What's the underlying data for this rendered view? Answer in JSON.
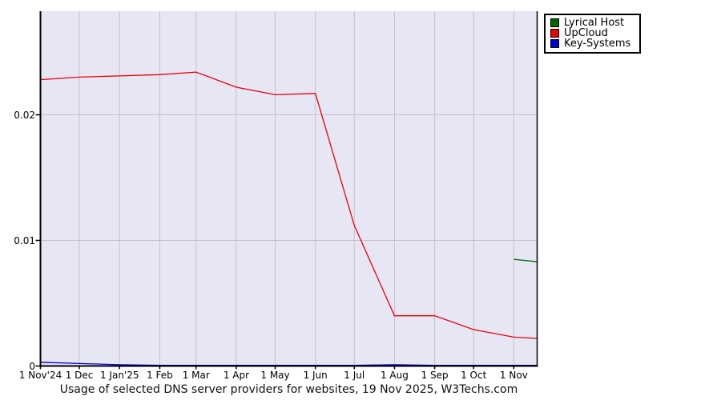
{
  "page": {
    "background": "#ffffff"
  },
  "chart_data": {
    "type": "line",
    "title": "Usage of selected DNS server providers for websites, 19 Nov 2025, W3Techs.com",
    "x_labels": [
      "1 Nov'24",
      "1 Dec",
      "1 Jan'25",
      "1 Feb",
      "1 Mar",
      "1 Apr",
      "1 May",
      "1 Jun",
      "1 Jul",
      "1 Aug",
      "1 Sep",
      "1 Oct",
      "1 Nov"
    ],
    "x_dates": [
      "2024-11-01",
      "2024-12-01",
      "2025-01-01",
      "2025-02-01",
      "2025-03-01",
      "2025-04-01",
      "2025-05-01",
      "2025-06-01",
      "2025-07-01",
      "2025-08-01",
      "2025-09-01",
      "2025-10-01",
      "2025-11-01",
      "2025-11-19"
    ],
    "y_ticks": [
      {
        "label": "0",
        "value": 0
      },
      {
        "label": "0.01",
        "value": 0.01
      },
      {
        "label": "0.02",
        "value": 0.02
      }
    ],
    "ylim": [
      0,
      0.02825
    ],
    "grid": true,
    "legend_position": "top-right-outside",
    "plot_bg": "#e6e6f5",
    "grid_color": "#c3c3c3",
    "axis_color": "#000000",
    "series": [
      {
        "name": "Lyrical Host",
        "color": "#006600",
        "values": [
          null,
          null,
          null,
          null,
          null,
          null,
          null,
          null,
          null,
          null,
          null,
          null,
          0.0085,
          0.0083
        ]
      },
      {
        "name": "UpCloud",
        "color": "#ee0000",
        "values": [
          0.0228,
          0.023,
          0.0231,
          0.0232,
          0.0234,
          0.0222,
          0.0216,
          0.0217,
          0.0112,
          0.004,
          0.004,
          0.0029,
          0.0023,
          0.0022
        ]
      },
      {
        "name": "Key-Systems",
        "color": "#0000dd",
        "values": [
          0.0003,
          0.0002,
          0.0001,
          5e-05,
          5e-05,
          5e-05,
          5e-05,
          5e-05,
          5e-05,
          0.0001,
          5e-05,
          5e-05,
          5e-05,
          5e-05
        ]
      }
    ]
  }
}
